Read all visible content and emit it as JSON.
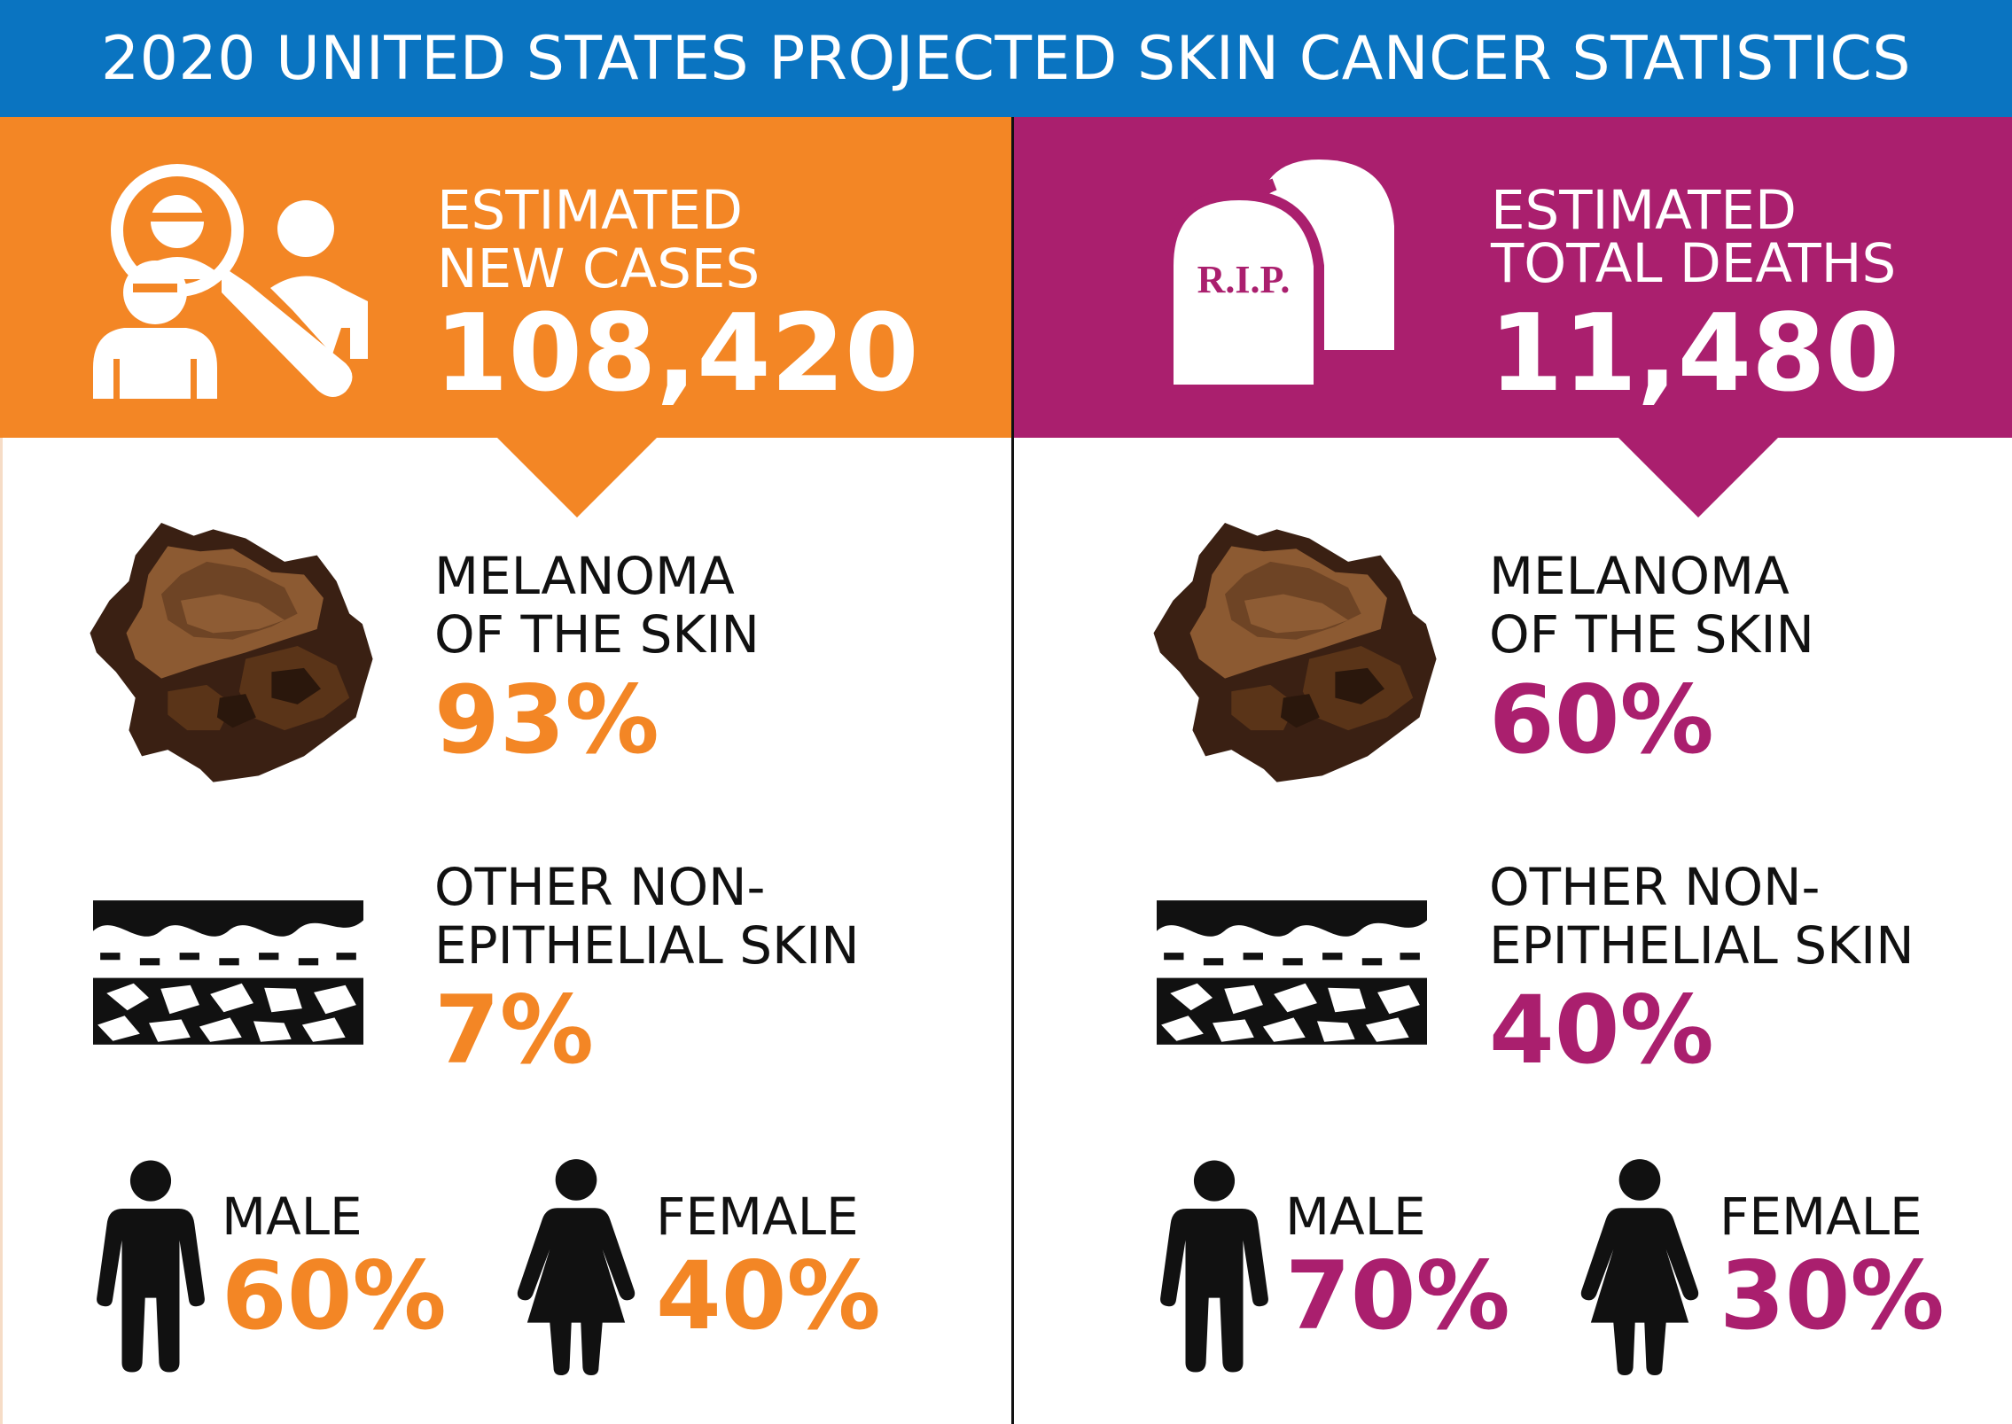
{
  "title": "2020 UNITED STATES PROJECTED SKIN CANCER STATISTICS",
  "colors": {
    "title_bar": "#0a74c1",
    "cases_accent": "#f38625",
    "deaths_accent": "#aa1f6e",
    "mole_dark": "#3a2013",
    "mole_mid": "#6e4425",
    "mole_light": "#8c5a32",
    "text_dark": "#111111"
  },
  "cases": {
    "label_line1": "ESTIMATED",
    "label_line2": "NEW CASES",
    "total": "108,420",
    "melanoma_line1": "MELANOMA",
    "melanoma_line2": "OF THE SKIN",
    "melanoma_pct": "93%",
    "other_line1": "OTHER NON-",
    "other_line2": "EPITHELIAL SKIN",
    "other_pct": "7%",
    "male_label": "MALE",
    "male_pct": "60%",
    "female_label": "FEMALE",
    "female_pct": "40%"
  },
  "deaths": {
    "label_line1": "ESTIMATED",
    "label_line2": "TOTAL DEATHS",
    "total": "11,480",
    "tombstone_text": "R.I.P.",
    "melanoma_line1": "MELANOMA",
    "melanoma_line2": "OF THE SKIN",
    "melanoma_pct": "60%",
    "other_line1": "OTHER NON-",
    "other_line2": "EPITHELIAL SKIN",
    "other_pct": "40%",
    "male_label": "MALE",
    "male_pct": "70%",
    "female_label": "FEMALE",
    "female_pct": "30%"
  },
  "icons": {
    "cases_header": "doctor-examining-patient-with-magnifier-icon",
    "deaths_header": "tombstone-icon",
    "melanoma": "mole-icon",
    "other": "skin-layers-icon",
    "male": "male-figure-icon",
    "female": "female-figure-icon"
  }
}
